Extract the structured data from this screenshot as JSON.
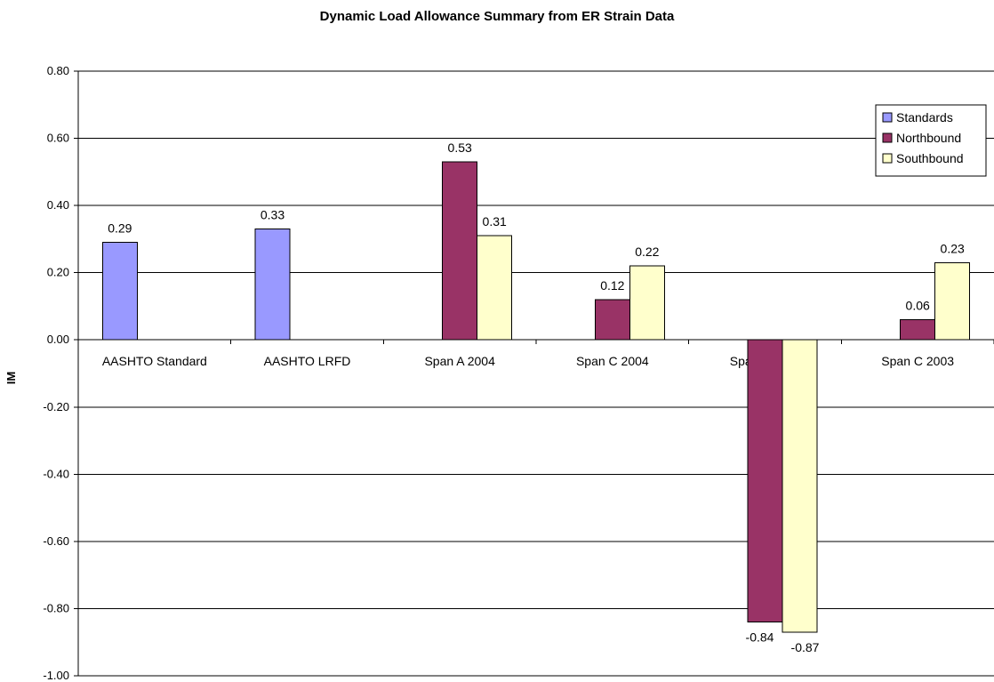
{
  "chart_data": {
    "type": "bar",
    "title": "Dynamic Load Allowance Summary from ER Strain Data",
    "xlabel": "",
    "ylabel": "IM",
    "ylim": [
      -1.0,
      0.8
    ],
    "yticks": [
      "0.80",
      "0.60",
      "0.40",
      "0.20",
      "0.00",
      "-0.20",
      "-0.40",
      "-0.60",
      "-0.80",
      "-1.00"
    ],
    "ytick_values": [
      0.8,
      0.6,
      0.4,
      0.2,
      0.0,
      -0.2,
      -0.4,
      -0.6,
      -0.8,
      -1.0
    ],
    "grid": true,
    "legend_position": "top-right",
    "categories": [
      "AASHTO Standard",
      "AASHTO LRFD",
      "Span A 2004",
      "Span C 2004",
      "Span A 2003",
      "Span C 2003"
    ],
    "series": [
      {
        "name": "Standards",
        "color": "#9999ff",
        "values": [
          0.29,
          0.33,
          null,
          null,
          null,
          null
        ],
        "labels": [
          "0.29",
          "0.33",
          null,
          null,
          null,
          null
        ]
      },
      {
        "name": "Northbound",
        "color": "#993366",
        "values": [
          null,
          null,
          0.53,
          0.12,
          -0.84,
          0.06
        ],
        "labels": [
          null,
          null,
          "0.53",
          "0.12",
          "-0.84",
          "0.06"
        ]
      },
      {
        "name": "Southbound",
        "color": "#ffffcc",
        "values": [
          null,
          null,
          0.31,
          0.22,
          -0.87,
          0.23
        ],
        "labels": [
          null,
          null,
          "0.31",
          "0.22",
          "-0.87",
          "0.23"
        ]
      }
    ]
  }
}
